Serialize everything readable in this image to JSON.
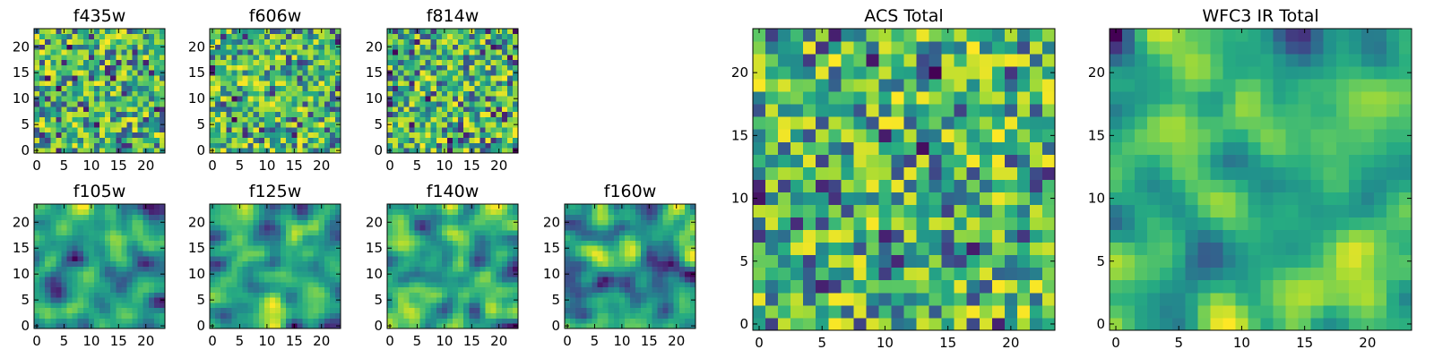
{
  "colors": {
    "colormap": "viridis",
    "dark": "#440154",
    "mid": "#21918c",
    "light": "#fde725",
    "frame": "#000000"
  },
  "chart_data": [
    {
      "type": "heatmap",
      "title": "f435w",
      "grid_size": 24,
      "xticks": [
        0,
        5,
        10,
        15,
        20
      ],
      "yticks": [
        0,
        5,
        10,
        15,
        20
      ],
      "xlim": [
        -0.5,
        23.5
      ],
      "ylim": [
        -0.5,
        23.5
      ],
      "texture": "noise"
    },
    {
      "type": "heatmap",
      "title": "f606w",
      "grid_size": 24,
      "xticks": [
        0,
        5,
        10,
        15,
        20
      ],
      "yticks": [
        0,
        5,
        10,
        15,
        20
      ],
      "xlim": [
        -0.5,
        23.5
      ],
      "ylim": [
        -0.5,
        23.5
      ],
      "texture": "noise"
    },
    {
      "type": "heatmap",
      "title": "f814w",
      "grid_size": 24,
      "xticks": [
        0,
        5,
        10,
        15,
        20
      ],
      "yticks": [
        0,
        5,
        10,
        15,
        20
      ],
      "xlim": [
        -0.5,
        23.5
      ],
      "ylim": [
        -0.5,
        23.5
      ],
      "texture": "noise"
    },
    {
      "type": "heatmap",
      "title": "f105w",
      "grid_size": 24,
      "xticks": [
        0,
        5,
        10,
        15,
        20
      ],
      "yticks": [
        0,
        5,
        10,
        15,
        20
      ],
      "xlim": [
        -0.5,
        23.5
      ],
      "ylim": [
        -0.5,
        23.5
      ],
      "texture": "smooth"
    },
    {
      "type": "heatmap",
      "title": "f125w",
      "grid_size": 24,
      "xticks": [
        0,
        5,
        10,
        15,
        20
      ],
      "yticks": [
        0,
        5,
        10,
        15,
        20
      ],
      "xlim": [
        -0.5,
        23.5
      ],
      "ylim": [
        -0.5,
        23.5
      ],
      "texture": "smooth"
    },
    {
      "type": "heatmap",
      "title": "f140w",
      "grid_size": 24,
      "xticks": [
        0,
        5,
        10,
        15,
        20
      ],
      "yticks": [
        0,
        5,
        10,
        15,
        20
      ],
      "xlim": [
        -0.5,
        23.5
      ],
      "ylim": [
        -0.5,
        23.5
      ],
      "texture": "smooth"
    },
    {
      "type": "heatmap",
      "title": "f160w",
      "grid_size": 24,
      "xticks": [
        0,
        5,
        10,
        15,
        20
      ],
      "yticks": [
        0,
        5,
        10,
        15,
        20
      ],
      "xlim": [
        -0.5,
        23.5
      ],
      "ylim": [
        -0.5,
        23.5
      ],
      "texture": "smooth"
    },
    {
      "type": "heatmap",
      "title": "ACS Total",
      "grid_size": 24,
      "xticks": [
        0,
        5,
        10,
        15,
        20
      ],
      "yticks": [
        0,
        5,
        10,
        15,
        20
      ],
      "xlim": [
        -0.5,
        23.5
      ],
      "ylim": [
        -0.5,
        23.5
      ],
      "texture": "noise"
    },
    {
      "type": "heatmap",
      "title": "WFC3 IR Total",
      "grid_size": 24,
      "xticks": [
        0,
        5,
        10,
        15,
        20
      ],
      "yticks": [
        0,
        5,
        10,
        15,
        20
      ],
      "xlim": [
        -0.5,
        23.5
      ],
      "ylim": [
        -0.5,
        23.5
      ],
      "texture": "smooth"
    }
  ]
}
